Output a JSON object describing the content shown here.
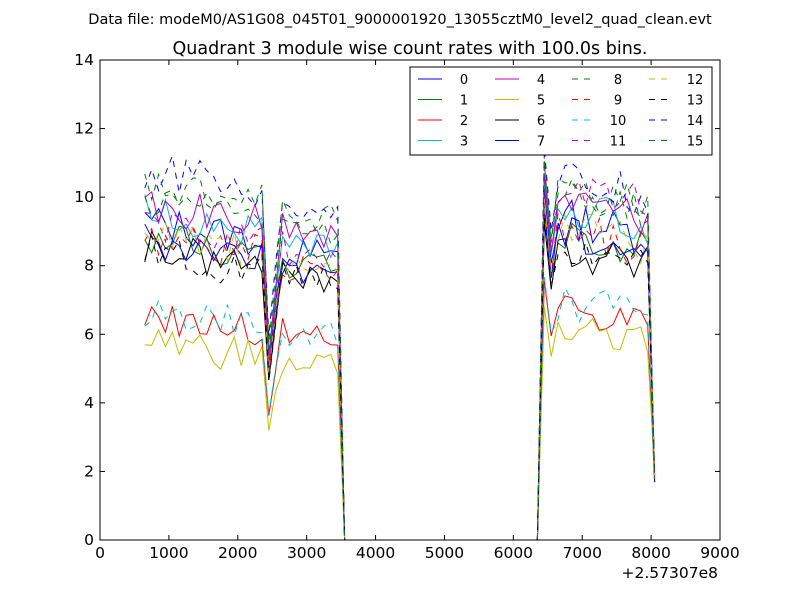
{
  "page": {
    "suptitle": "Data file: modeM0/AS1G08_045T01_9000001920_13055cztM0_level2_quad_clean.evt"
  },
  "chart_data": {
    "type": "line",
    "title": "Quadrant 3 module wise count rates with 100.0s bins.",
    "xlabel": "",
    "ylabel": "",
    "xlim": [
      0,
      9000
    ],
    "ylim": [
      0,
      14
    ],
    "x_ticks": [
      0,
      1000,
      2000,
      3000,
      4000,
      5000,
      6000,
      7000,
      8000,
      9000
    ],
    "y_ticks": [
      0,
      2,
      4,
      6,
      8,
      10,
      12,
      14
    ],
    "x_offset_label": "+2.57307e8",
    "grid": false,
    "legend": {
      "placement": "top-right",
      "columns": 4
    },
    "x_start": 650,
    "x_step": 100,
    "gap_start_x": 3550,
    "gap_end_x": 6350,
    "segment1_x_end": 3550,
    "segment2_x_start": 6350,
    "segment2_x_end": 8050,
    "series": [
      {
        "name": "0",
        "color": "#0000ff",
        "dash": "solid",
        "base1": 9.3,
        "base2": 9.5
      },
      {
        "name": "1",
        "color": "#008000",
        "dash": "solid",
        "base1": 8.8,
        "base2": 9.0
      },
      {
        "name": "2",
        "color": "#ff0000",
        "dash": "solid",
        "base1": 6.6,
        "base2": 7.0
      },
      {
        "name": "3",
        "color": "#00bfbf",
        "dash": "solid",
        "base1": 9.6,
        "base2": 9.8
      },
      {
        "name": "4",
        "color": "#bf00bf",
        "dash": "solid",
        "base1": 9.8,
        "base2": 9.9
      },
      {
        "name": "5",
        "color": "#bfbf00",
        "dash": "solid",
        "base1": 5.8,
        "base2": 6.3
      },
      {
        "name": "6",
        "color": "#000000",
        "dash": "solid",
        "base1": 8.5,
        "base2": 8.6
      },
      {
        "name": "7",
        "color": "#0000ff",
        "dash": "solid",
        "base1": 8.8,
        "base2": 9.0
      },
      {
        "name": "8",
        "color": "#008000",
        "dash": "dashed",
        "base1": 9.9,
        "base2": 10.2
      },
      {
        "name": "9",
        "color": "#ff0000",
        "dash": "dashed",
        "base1": 8.9,
        "base2": 9.1
      },
      {
        "name": "10",
        "color": "#00bfbf",
        "dash": "dashed",
        "base1": 6.7,
        "base2": 7.1
      },
      {
        "name": "11",
        "color": "#bf00bf",
        "dash": "dashed",
        "base1": 9.2,
        "base2": 10.4
      },
      {
        "name": "12",
        "color": "#bfbf00",
        "dash": "dashed",
        "base1": 8.9,
        "base2": 9.2
      },
      {
        "name": "13",
        "color": "#000000",
        "dash": "dashed",
        "base1": 8.4,
        "base2": 8.7
      },
      {
        "name": "14",
        "color": "#0000ff",
        "dash": "dashed",
        "base1": 10.8,
        "base2": 10.6
      },
      {
        "name": "15",
        "color": "#008000",
        "dash": "dashed",
        "base1": 10.4,
        "base2": 10.3
      }
    ]
  }
}
